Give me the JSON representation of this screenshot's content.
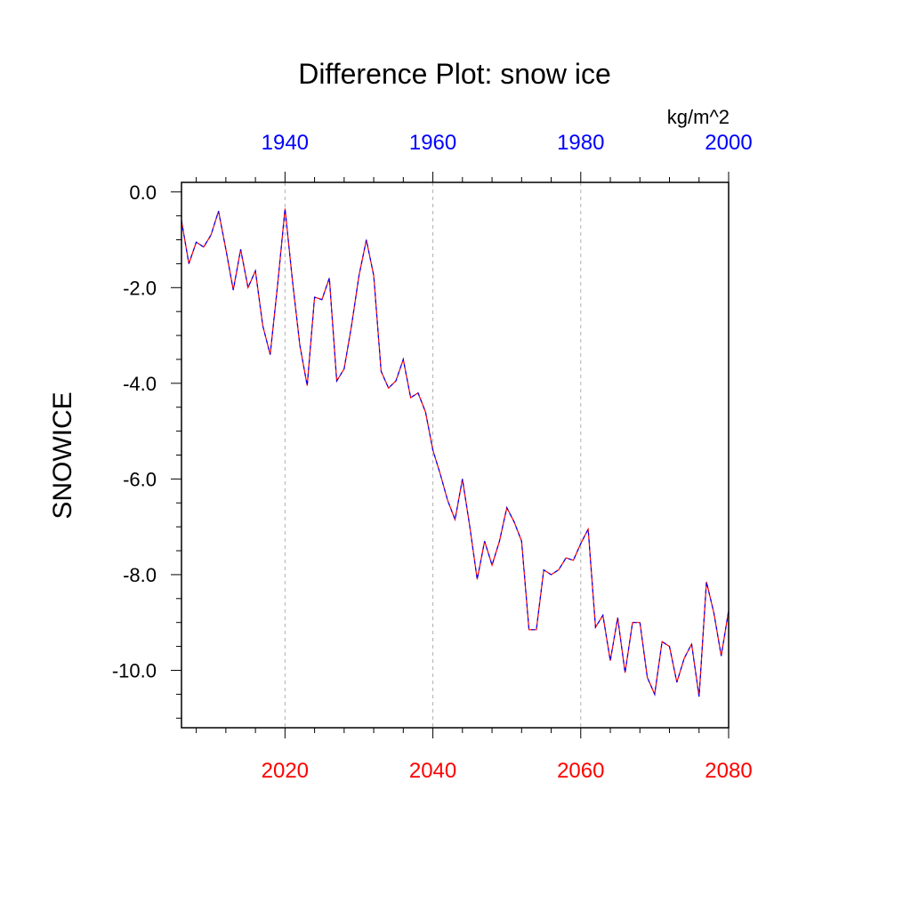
{
  "chart_data": {
    "type": "line",
    "title": "Difference Plot: snow ice",
    "units": "kg/m^2",
    "ylabel": "SNOWICE",
    "xlabel": "",
    "xlim": [
      2006,
      2080
    ],
    "ylim": [
      -11.2,
      0.2
    ],
    "yticks": [
      {
        "value": 0,
        "label": "0.0"
      },
      {
        "value": -2,
        "label": "-2.0"
      },
      {
        "value": -4,
        "label": "-4.0"
      },
      {
        "value": -6,
        "label": "-6.0"
      },
      {
        "value": -8,
        "label": "-8.0"
      },
      {
        "value": -10,
        "label": "-10.0"
      }
    ],
    "bottom_axis": {
      "color": "#ff0000",
      "ticks": [
        {
          "value": 2020,
          "label": "2020"
        },
        {
          "value": 2040,
          "label": "2040"
        },
        {
          "value": 2060,
          "label": "2060"
        },
        {
          "value": 2080,
          "label": "2080"
        }
      ]
    },
    "top_axis": {
      "color": "#0000ff",
      "offset_years": 80,
      "ticks": [
        {
          "value": 1940,
          "label": "1940"
        },
        {
          "value": 1960,
          "label": "1960"
        },
        {
          "value": 1980,
          "label": "1980"
        },
        {
          "value": 2000,
          "label": "2000"
        }
      ]
    },
    "grid": {
      "vertical_dashed_at": [
        2020,
        2040,
        2060
      ]
    },
    "series": [
      {
        "color_a": "#ff0000",
        "color_b": "#0000ff",
        "x": [
          2006,
          2007,
          2008,
          2009,
          2010,
          2011,
          2012,
          2013,
          2014,
          2015,
          2016,
          2017,
          2018,
          2019,
          2020,
          2021,
          2022,
          2023,
          2024,
          2025,
          2026,
          2027,
          2028,
          2029,
          2030,
          2031,
          2032,
          2033,
          2034,
          2035,
          2036,
          2037,
          2038,
          2039,
          2040,
          2041,
          2042,
          2043,
          2044,
          2045,
          2046,
          2047,
          2048,
          2049,
          2050,
          2051,
          2052,
          2053,
          2054,
          2055,
          2056,
          2057,
          2058,
          2059,
          2060,
          2061,
          2062,
          2063,
          2064,
          2065,
          2066,
          2067,
          2068,
          2069,
          2070,
          2071,
          2072,
          2073,
          2074,
          2075,
          2076,
          2077,
          2078,
          2079,
          2080
        ],
        "values": [
          -0.6,
          -1.5,
          -1.05,
          -1.15,
          -0.9,
          -0.4,
          -1.2,
          -2.05,
          -1.2,
          -2.0,
          -1.65,
          -2.8,
          -3.4,
          -1.95,
          -0.35,
          -1.85,
          -3.2,
          -4.05,
          -2.2,
          -2.25,
          -1.8,
          -3.95,
          -3.7,
          -2.8,
          -1.75,
          -1.0,
          -1.75,
          -3.75,
          -4.1,
          -3.95,
          -3.5,
          -4.3,
          -4.2,
          -4.6,
          -5.4,
          -5.9,
          -6.45,
          -6.85,
          -6.0,
          -7.0,
          -8.1,
          -7.3,
          -7.8,
          -7.3,
          -6.6,
          -6.9,
          -7.3,
          -9.15,
          -9.15,
          -7.9,
          -8.0,
          -7.9,
          -7.65,
          -7.7,
          -7.35,
          -7.05,
          -9.1,
          -8.85,
          -9.8,
          -8.9,
          -10.05,
          -9.0,
          -9.0,
          -10.15,
          -10.5,
          -9.4,
          -9.5,
          -10.25,
          -9.75,
          -9.45,
          -10.55,
          -8.15,
          -8.8,
          -9.7,
          -8.75
        ]
      }
    ]
  }
}
